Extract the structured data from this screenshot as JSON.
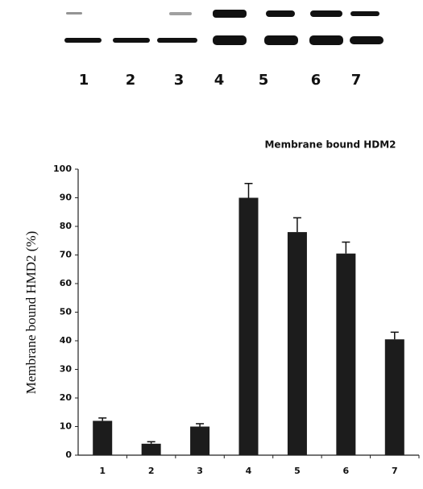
{
  "blot": {
    "lanes": [
      "1",
      "2",
      "3",
      "4",
      "5",
      "6",
      "7"
    ]
  },
  "chart_data": {
    "type": "bar",
    "title": "Membrane bound HDM2",
    "y_label": "Membrane bound HMD2 (%)",
    "categories": [
      "1",
      "2",
      "3",
      "4",
      "5",
      "6",
      "7"
    ],
    "values": [
      12,
      4,
      10,
      90,
      78,
      70.5,
      40.5
    ],
    "errors": [
      1,
      0.7,
      1,
      5,
      5,
      4,
      2.5
    ],
    "color": "#1c1c1c",
    "ylim": [
      0,
      100
    ],
    "yticks": [
      0,
      10,
      20,
      30,
      40,
      50,
      60,
      70,
      80,
      90,
      100
    ]
  }
}
